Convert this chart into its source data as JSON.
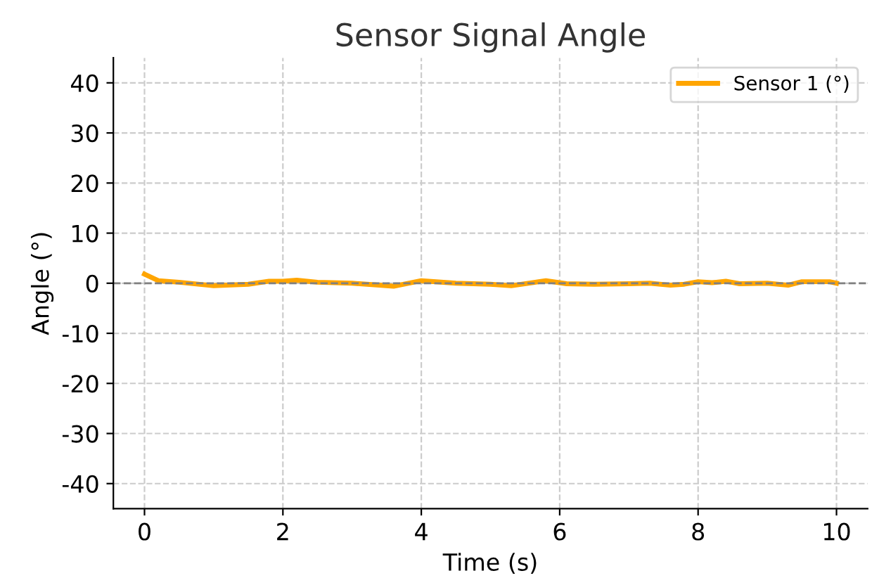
{
  "chart_data": {
    "type": "line",
    "title": "Sensor Signal Angle",
    "xlabel": "Time (s)",
    "ylabel": "Angle (°)",
    "series": [
      {
        "name": "Sensor 1 (°)",
        "color": "#ffa500",
        "x": [
          0,
          0.2,
          0.5,
          1,
          1.5,
          1.8,
          2,
          2.2,
          2.5,
          3,
          3.6,
          4,
          4.5,
          5,
          5.3,
          5.8,
          6.1,
          6.5,
          7,
          7.3,
          7.6,
          7.8,
          8,
          8.2,
          8.4,
          8.6,
          9,
          9.3,
          9.5,
          9.9,
          10
        ],
        "values": [
          1.8,
          0.5,
          0.2,
          -0.5,
          -0.2,
          0.4,
          0.4,
          0.6,
          0.2,
          0,
          -0.6,
          0.5,
          0,
          -0.2,
          -0.5,
          0.5,
          -0.1,
          -0.2,
          -0.1,
          0,
          -0.4,
          -0.2,
          0.3,
          0.1,
          0.4,
          -0.1,
          0,
          -0.4,
          0.3,
          0.3,
          0
        ]
      }
    ],
    "xlim": [
      -0.45,
      10.45
    ],
    "xticks": [
      0,
      2,
      4,
      6,
      8,
      10
    ],
    "ylim": [
      -45,
      45
    ],
    "yticks": [
      -40,
      -30,
      -20,
      -10,
      0,
      10,
      20,
      30,
      40
    ],
    "ref_lines": [
      {
        "axis": "y",
        "value": 0,
        "color": "#808080",
        "line_style": "dashed"
      }
    ],
    "grid": true,
    "legend": "top right",
    "line_style": "solid",
    "marker": "none"
  }
}
